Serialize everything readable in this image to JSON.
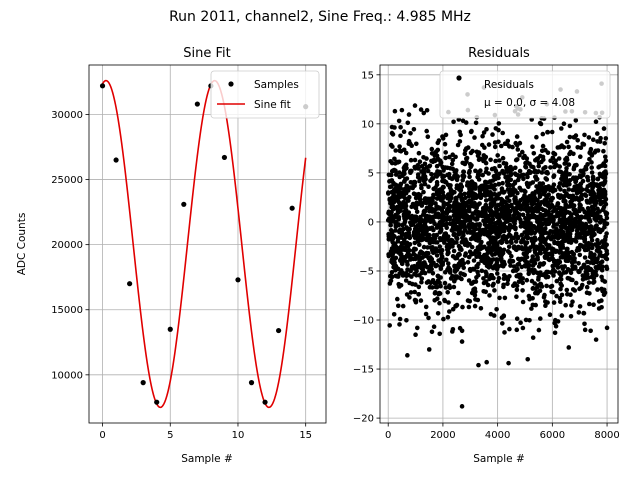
{
  "suptitle": "Run 2011, channel2, Sine Freq.: 4.985 MHz",
  "chart_data": [
    {
      "type": "line",
      "title": "Sine Fit",
      "xlabel": "Sample #",
      "ylabel": "ADC Counts",
      "xlim": [
        -1,
        16.5
      ],
      "ylim": [
        6300,
        33800
      ],
      "xticks": [
        0,
        5,
        10,
        15
      ],
      "yticks": [
        10000,
        15000,
        20000,
        25000,
        30000
      ],
      "grid": true,
      "legend_position": "top-right",
      "series": [
        {
          "name": "Samples",
          "style": "markers",
          "color": "#000000",
          "x": [
            0,
            1,
            2,
            3,
            4,
            5,
            6,
            7,
            8,
            9,
            10,
            11,
            12,
            13,
            14,
            15
          ],
          "y": [
            32200,
            26500,
            17000,
            9400,
            7900,
            13500,
            23100,
            30800,
            32200,
            26700,
            17300,
            9400,
            7900,
            13400,
            22800,
            30600
          ]
        },
        {
          "name": "Sine fit",
          "style": "line",
          "color": "#e00000",
          "fit": {
            "offset": 20050,
            "amplitude": 12550,
            "period": 8.02,
            "phase": 0.2
          }
        }
      ]
    },
    {
      "type": "scatter",
      "title": "Residuals",
      "xlabel": "Sample #",
      "ylabel": "",
      "xlim": [
        -300,
        8400
      ],
      "ylim": [
        -20.5,
        16
      ],
      "xticks": [
        0,
        2000,
        4000,
        6000,
        8000
      ],
      "yticks": [
        -20,
        -15,
        -10,
        -5,
        0,
        5,
        10,
        15
      ],
      "grid": true,
      "legend_position": "top-right",
      "series": [
        {
          "name": "Residuals",
          "stats_label": "μ = 0.0, σ = 4.08",
          "color": "#000000",
          "x": [
            2700,
            3300,
            3600,
            4400,
            6600,
            700,
            1500,
            2700,
            5100,
            7600,
            1000,
            1600,
            4700,
            5300,
            6100,
            7200,
            8000,
            7400,
            500,
            3500,
            6900,
            400,
            2200,
            5800,
            2900,
            1300,
            4900,
            6300,
            7800,
            3900
          ],
          "y": [
            -18.8,
            -14.6,
            -14.3,
            -14.4,
            -12.8,
            -13.6,
            -13.0,
            -12.2,
            -14.0,
            -12.0,
            -11.5,
            -11.2,
            -11.0,
            -11.8,
            -11.3,
            -11.0,
            -10.8,
            -11.1,
            11.4,
            13.7,
            13.3,
            10.3,
            11.2,
            12.0,
            13.0,
            11.1,
            12.7,
            13.5,
            14.1,
            10.9
          ],
          "dense_band": {
            "x_range": [
              0,
              8000
            ],
            "mean": 0.0,
            "std": 4.08,
            "count": 8000
          }
        }
      ]
    }
  ]
}
